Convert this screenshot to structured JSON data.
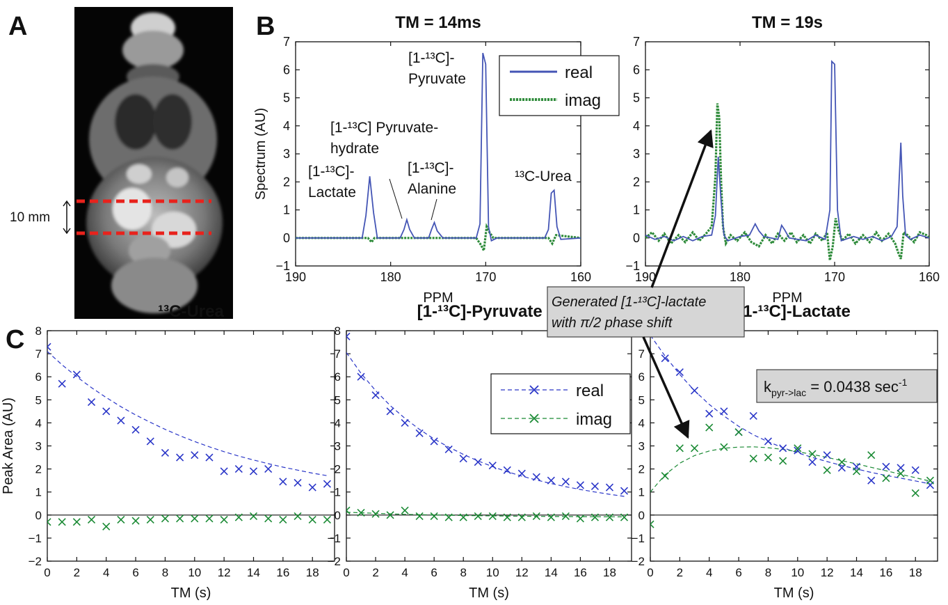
{
  "panel_labels": {
    "a": "A",
    "b": "B",
    "c": "C"
  },
  "panel_a": {
    "scale_label": "10 mm",
    "slice_color": "#e8221c"
  },
  "colors": {
    "real": "#2a36c8",
    "imag": "#1a8a34",
    "real_spec": "#4455b5",
    "imag_spec": "#2e8b3a"
  },
  "annotation": {
    "callout_line1": "Generated [1-¹³C]-lactate",
    "callout_line2": "with π/2 phase shift",
    "rate_label": "k",
    "rate_sub": "pyr->lac",
    "rate_value": " = 0.0438 sec",
    "rate_sup": "-1"
  },
  "chart_data": [
    {
      "type": "line",
      "title": "TM = 14ms",
      "xlabel": "PPM",
      "ylabel": "Spectrum (AU)",
      "xlim": [
        190,
        160
      ],
      "ylim": [
        -1,
        7
      ],
      "xticks": [
        190,
        180,
        170,
        160
      ],
      "yticks": [
        -1,
        0,
        1,
        2,
        3,
        4,
        5,
        6,
        7
      ],
      "legend": [
        "real",
        "imag"
      ],
      "legend_position": "top-right",
      "peak_labels": [
        {
          "lines": [
            "[1-¹³C]-",
            "Lactate"
          ]
        },
        {
          "lines": [
            "[1-¹³C] Pyruvate-",
            "hydrate"
          ]
        },
        {
          "lines": [
            "[1-¹³C]-",
            "Alanine"
          ]
        },
        {
          "lines": [
            "[1-¹³C]-",
            "Pyruvate"
          ]
        },
        {
          "lines": [
            "¹³C-Urea"
          ]
        }
      ],
      "series": [
        {
          "name": "real",
          "x": [
            190,
            183,
            182.6,
            182.2,
            181.8,
            181.4,
            179,
            178.6,
            178.3,
            178,
            177.5,
            176,
            175.7,
            175.4,
            175.1,
            174.5,
            171,
            170.6,
            170.3,
            170.0,
            169.7,
            169.4,
            168.8,
            163.8,
            163.4,
            163.1,
            162.8,
            162.5,
            162.1,
            160
          ],
          "y": [
            0,
            0,
            0.8,
            2.2,
            0.9,
            0,
            0,
            0.3,
            0.65,
            0.3,
            0,
            0,
            0.3,
            0.55,
            0.25,
            0,
            0,
            0.5,
            6.6,
            6.2,
            0.4,
            -0.1,
            0,
            0,
            0.3,
            1.6,
            1.7,
            0.4,
            -0.05,
            0
          ]
        },
        {
          "name": "imag",
          "x": [
            190,
            182.4,
            182.0,
            181.7,
            171,
            170.5,
            170.2,
            169.9,
            169.6,
            169.2,
            163.4,
            163.0,
            162.6,
            160
          ],
          "y": [
            0,
            0,
            -0.15,
            0,
            0,
            -0.25,
            -0.45,
            0.4,
            0.2,
            0,
            0,
            -0.2,
            0.1,
            0
          ]
        }
      ]
    },
    {
      "type": "line",
      "title": "TM = 19s",
      "xlabel": "PPM",
      "ylabel": "",
      "xlim": [
        190,
        160
      ],
      "ylim": [
        -1,
        7
      ],
      "xticks": [
        190,
        180,
        170,
        160
      ],
      "yticks": [
        -1,
        0,
        1,
        2,
        3,
        4,
        5,
        6,
        7
      ],
      "series": [
        {
          "name": "real",
          "x": [
            190,
            189,
            188,
            187,
            186,
            185,
            184,
            183,
            182.6,
            182.3,
            182.0,
            181.7,
            181.3,
            180,
            179,
            178.4,
            178,
            177.5,
            176,
            175.6,
            175.3,
            174.8,
            173,
            172,
            171,
            170.5,
            170.3,
            170.0,
            169.7,
            169.3,
            168,
            167,
            166,
            165,
            164,
            163.4,
            163.0,
            162.8,
            162.5,
            162,
            161,
            160
          ],
          "y": [
            0.1,
            -0.05,
            0.05,
            -0.1,
            0.05,
            -0.1,
            0.05,
            0.1,
            0.8,
            2.9,
            1.3,
            0.1,
            -0.1,
            0.05,
            0.1,
            0.5,
            0.25,
            0.05,
            -0.05,
            0.45,
            0.3,
            0,
            -0.1,
            0.1,
            -0.05,
            1.0,
            6.3,
            6.2,
            1.0,
            -0.1,
            0.05,
            -0.05,
            0.05,
            -0.1,
            0.05,
            0.4,
            3.4,
            1.5,
            0.1,
            -0.05,
            0.1,
            0
          ]
        },
        {
          "name": "imag",
          "x": [
            190,
            189.3,
            188.6,
            188,
            187.3,
            186.5,
            185.8,
            185,
            184.3,
            183.6,
            183.0,
            182.6,
            182.4,
            182.2,
            182.0,
            181.8,
            181.5,
            181.0,
            180.3,
            179.5,
            178.8,
            178.0,
            177.3,
            176.6,
            176,
            175.3,
            174.6,
            174,
            173.3,
            172.6,
            172,
            171.3,
            170.8,
            170.5,
            170.2,
            169.9,
            169.6,
            169.2,
            168.5,
            167.8,
            167,
            166.3,
            165.6,
            165,
            164.3,
            163.6,
            163.3,
            163.0,
            162.7,
            162.3,
            161.6,
            161,
            160.3,
            160
          ],
          "y": [
            0,
            0.2,
            -0.1,
            0.15,
            -0.2,
            0.1,
            -0.15,
            0.2,
            -0.1,
            0.15,
            0.4,
            2.2,
            4.8,
            4.3,
            2.0,
            0.4,
            -0.2,
            0.1,
            -0.1,
            0.2,
            -0.15,
            -0.3,
            0.1,
            -0.2,
            0.15,
            -0.1,
            0.2,
            -0.15,
            0.1,
            -0.2,
            0.15,
            -0.1,
            0.2,
            -0.8,
            -0.3,
            0.7,
            0.3,
            -0.1,
            0.15,
            -0.2,
            0.1,
            -0.15,
            0.2,
            -0.1,
            0.15,
            -0.2,
            -0.5,
            -0.75,
            0.2,
            0.1,
            -0.15,
            0.2,
            0.1,
            0
          ]
        }
      ]
    },
    {
      "type": "scatter",
      "title": "¹³C-Urea",
      "xlabel": "TM (s)",
      "ylabel": "Peak Area (AU)",
      "xlim": [
        0,
        19.5
      ],
      "ylim": [
        -2,
        8
      ],
      "xticks": [
        0,
        2,
        4,
        6,
        8,
        10,
        12,
        14,
        16,
        18
      ],
      "yticks": [
        -2,
        -1,
        0,
        1,
        2,
        3,
        4,
        5,
        6,
        7,
        8
      ],
      "series": [
        {
          "name": "real",
          "x": [
            0,
            1,
            2,
            3,
            4,
            5,
            6,
            7,
            8,
            9,
            10,
            11,
            12,
            13,
            14,
            15,
            16,
            17,
            18,
            19
          ],
          "y": [
            7.3,
            5.7,
            6.1,
            4.9,
            4.5,
            4.1,
            3.7,
            3.2,
            2.7,
            2.5,
            2.6,
            2.5,
            1.9,
            2.0,
            1.9,
            2.0,
            1.45,
            1.4,
            1.2,
            1.35
          ]
        },
        {
          "name": "imag",
          "x": [
            0,
            1,
            2,
            3,
            4,
            5,
            6,
            7,
            8,
            9,
            10,
            11,
            12,
            13,
            14,
            15,
            16,
            17,
            18,
            19
          ],
          "y": [
            -0.3,
            -0.3,
            -0.3,
            -0.2,
            -0.5,
            -0.2,
            -0.25,
            -0.2,
            -0.15,
            -0.15,
            -0.15,
            -0.15,
            -0.2,
            -0.1,
            -0.05,
            -0.15,
            -0.2,
            -0.05,
            -0.2,
            -0.2
          ]
        }
      ],
      "fits": [
        {
          "series": "real",
          "x": [
            0,
            1,
            2,
            3,
            4,
            5,
            6,
            7,
            8,
            9,
            10,
            11,
            12,
            13,
            14,
            15,
            16,
            17,
            18,
            19
          ],
          "y": [
            7.1,
            6.52,
            6.0,
            5.53,
            5.1,
            4.7,
            4.34,
            4.02,
            3.72,
            3.44,
            3.19,
            2.96,
            2.75,
            2.56,
            2.39,
            2.23,
            2.08,
            1.95,
            1.82,
            1.71
          ]
        }
      ]
    },
    {
      "type": "scatter",
      "title": "[1-¹³C]-Pyruvate /2",
      "xlabel": "TM (s)",
      "ylabel": "",
      "xlim": [
        0,
        19.5
      ],
      "ylim": [
        -2,
        8
      ],
      "xticks": [
        0,
        2,
        4,
        6,
        8,
        10,
        12,
        14,
        16,
        18
      ],
      "yticks": [
        -2,
        -1,
        0,
        1,
        2,
        3,
        4,
        5,
        6,
        7,
        8
      ],
      "legend": [
        "real",
        "imag"
      ],
      "legend_position": "top-right",
      "series": [
        {
          "name": "real",
          "x": [
            0,
            1,
            2,
            3,
            4,
            5,
            6,
            7,
            8,
            9,
            10,
            11,
            12,
            13,
            14,
            15,
            16,
            17,
            18,
            19
          ],
          "y": [
            7.75,
            6.0,
            5.2,
            4.5,
            4.0,
            3.55,
            3.2,
            2.85,
            2.45,
            2.3,
            2.15,
            1.95,
            1.8,
            1.65,
            1.5,
            1.45,
            1.3,
            1.25,
            1.2,
            1.05
          ]
        },
        {
          "name": "imag",
          "x": [
            0,
            1,
            2,
            3,
            4,
            5,
            6,
            7,
            8,
            9,
            10,
            11,
            12,
            13,
            14,
            15,
            16,
            17,
            18,
            19
          ],
          "y": [
            0.2,
            0.1,
            0.05,
            0.0,
            0.2,
            -0.05,
            -0.05,
            -0.1,
            -0.1,
            -0.05,
            -0.05,
            -0.1,
            -0.1,
            -0.05,
            -0.1,
            -0.05,
            -0.15,
            -0.1,
            -0.1,
            -0.1
          ]
        }
      ],
      "fits": [
        {
          "series": "real",
          "x": [
            0,
            1,
            2,
            3,
            4,
            5,
            6,
            7,
            8,
            9,
            10,
            11,
            12,
            13,
            14,
            15,
            16,
            17,
            18,
            19
          ],
          "y": [
            7.05,
            6.15,
            5.4,
            4.75,
            4.2,
            3.72,
            3.3,
            2.95,
            2.63,
            2.35,
            2.1,
            1.88,
            1.69,
            1.52,
            1.37,
            1.23,
            1.11,
            1.0,
            0.9,
            0.81
          ]
        },
        {
          "series": "imag",
          "x": [
            0,
            4,
            8,
            12,
            16,
            19
          ],
          "y": [
            0.12,
            0.03,
            -0.02,
            -0.05,
            -0.07,
            -0.08
          ]
        }
      ]
    },
    {
      "type": "scatter",
      "title": "[1-¹³C]-Lactate",
      "xlabel": "TM (s)",
      "ylabel": "",
      "xlim": [
        0,
        19.5
      ],
      "ylim": [
        -2,
        8
      ],
      "xticks": [
        0,
        2,
        4,
        6,
        8,
        10,
        12,
        14,
        16,
        18
      ],
      "yticks": [
        -2,
        -1,
        0,
        1,
        2,
        3,
        4,
        5,
        6,
        7,
        8
      ],
      "series": [
        {
          "name": "real",
          "x": [
            0,
            1,
            2,
            3,
            4,
            5,
            6,
            7,
            8,
            9,
            10,
            11,
            12,
            13,
            14,
            15,
            16,
            17,
            18,
            19
          ],
          "y": [
            7.9,
            6.8,
            6.2,
            5.4,
            4.4,
            4.5,
            3.6,
            4.3,
            3.2,
            2.9,
            2.8,
            2.3,
            2.6,
            2.05,
            2.1,
            1.5,
            2.1,
            2.05,
            1.95,
            1.3
          ]
        },
        {
          "name": "imag",
          "x": [
            0,
            1,
            2,
            3,
            4,
            5,
            6,
            7,
            8,
            9,
            10,
            11,
            12,
            13,
            14,
            15,
            16,
            17,
            18,
            19
          ],
          "y": [
            -0.4,
            1.7,
            2.9,
            2.9,
            3.8,
            2.95,
            3.6,
            2.45,
            2.5,
            2.35,
            2.9,
            2.65,
            1.95,
            2.3,
            1.9,
            2.6,
            1.6,
            1.8,
            0.95,
            1.5
          ]
        }
      ],
      "fits": [
        {
          "series": "real",
          "x": [
            0,
            1,
            2,
            3,
            4,
            5,
            6,
            7,
            8,
            9,
            10,
            11,
            12,
            13,
            14,
            15,
            16,
            17,
            18,
            19
          ],
          "y": [
            7.8,
            6.9,
            6.1,
            5.4,
            4.8,
            4.3,
            3.85,
            3.48,
            3.18,
            2.92,
            2.7,
            2.5,
            2.32,
            2.15,
            2.0,
            1.85,
            1.72,
            1.6,
            1.48,
            1.35
          ]
        },
        {
          "series": "imag",
          "x": [
            0,
            1,
            2,
            3,
            4,
            5,
            6,
            7,
            8,
            9,
            10,
            11,
            12,
            13,
            14,
            15,
            16,
            17,
            18,
            19
          ],
          "y": [
            1.0,
            1.75,
            2.25,
            2.58,
            2.78,
            2.9,
            2.95,
            2.96,
            2.92,
            2.85,
            2.75,
            2.63,
            2.5,
            2.36,
            2.22,
            2.07,
            1.92,
            1.77,
            1.62,
            1.47
          ]
        }
      ]
    }
  ]
}
